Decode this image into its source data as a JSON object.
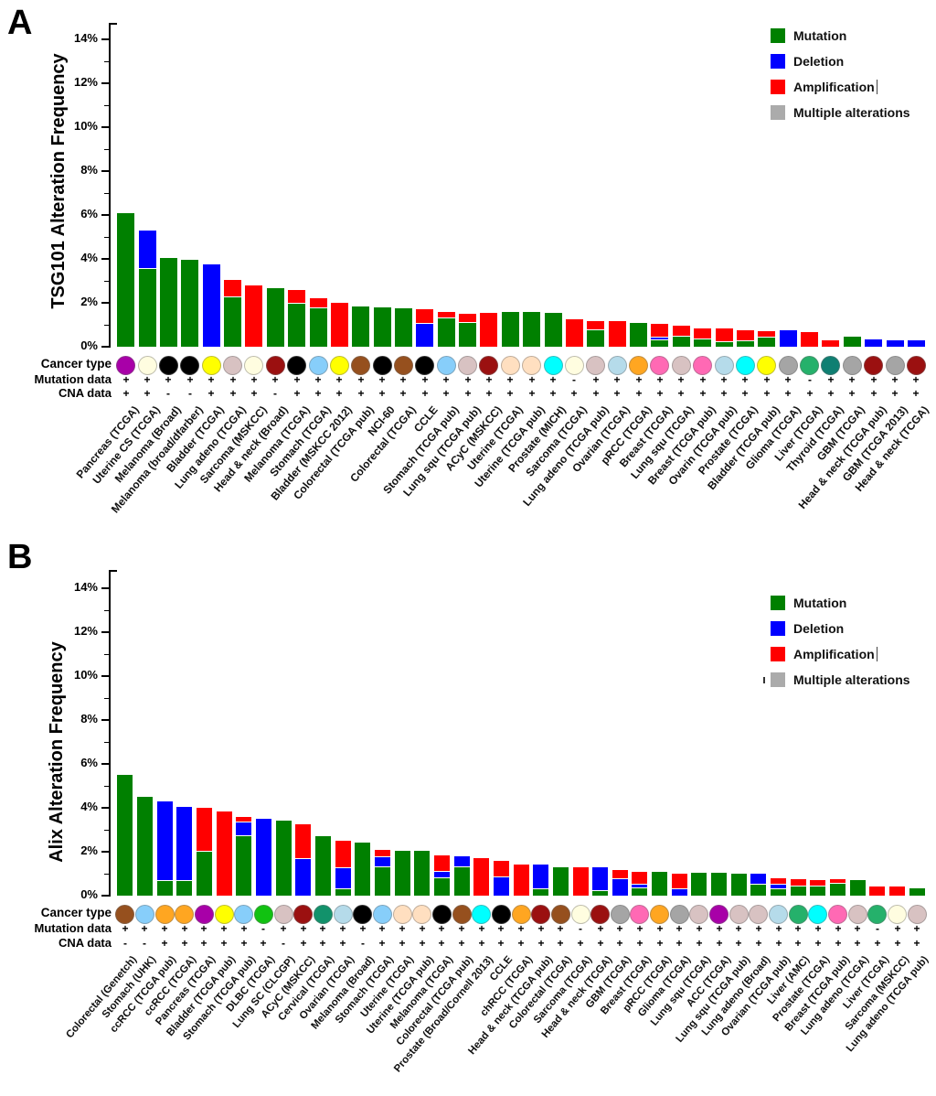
{
  "colors": {
    "mutation": "#008000",
    "deletion": "#0000FF",
    "amplification": "#FF0000",
    "multiple": "#ABABAB"
  },
  "chart_data": [
    {
      "type": "bar",
      "stacked": true,
      "panel_letter": "A",
      "ylabel": "TSG101 Alteration Frequency",
      "ylim": [
        0,
        15
      ],
      "y_ticks": [
        "0%",
        "2%",
        "4%",
        "6%",
        "8%",
        "10%",
        "12%",
        "14%"
      ],
      "grid": false,
      "legend_position": "top-right",
      "legend": [
        {
          "label": "Mutation",
          "color": "#008000"
        },
        {
          "label": "Deletion",
          "color": "#0000FF"
        },
        {
          "label": "Amplification",
          "color": "#FF0000",
          "caret": true
        },
        {
          "label": "Multiple alterations",
          "color": "#ABABAB"
        }
      ],
      "row_labels": [
        "Cancer type",
        "Mutation data",
        "CNA data"
      ],
      "series_keys": [
        "mutation",
        "deletion",
        "amplification"
      ],
      "bars": [
        {
          "label": "Pancreas (TCGA)",
          "dot": "#A800A8",
          "mut": "+",
          "cna": "+",
          "m": 6.1,
          "d": 0,
          "a": 0
        },
        {
          "label": "Uterine CS (TCGA)",
          "dot": "#FFFDE0",
          "mut": "+",
          "cna": "+",
          "m": 3.55,
          "d": 1.75,
          "a": 0
        },
        {
          "label": "Melanoma (Broad)",
          "dot": "#000000",
          "mut": "+",
          "cna": "-",
          "m": 4.05,
          "d": 0,
          "a": 0
        },
        {
          "label": "Melanoma (broad/dfarber)",
          "dot": "#000000",
          "mut": "+",
          "cna": "-",
          "m": 3.95,
          "d": 0,
          "a": 0
        },
        {
          "label": "Bladder (TCGA)",
          "dot": "#FFFF00",
          "mut": "+",
          "cna": "+",
          "m": 0,
          "d": 3.75,
          "a": 0
        },
        {
          "label": "Lung adeno (TCGA)",
          "dot": "#D8C2C2",
          "mut": "+",
          "cna": "+",
          "m": 2.25,
          "d": 0,
          "a": 0.8
        },
        {
          "label": "Sarcoma (MSKCC)",
          "dot": "#FFFDE0",
          "mut": "+",
          "cna": "+",
          "m": 0,
          "d": 0,
          "a": 2.8
        },
        {
          "label": "Head & neck (Broad)",
          "dot": "#9B1010",
          "mut": "+",
          "cna": "-",
          "m": 2.65,
          "d": 0,
          "a": 0
        },
        {
          "label": "Melanoma (TCGA)",
          "dot": "#000000",
          "mut": "+",
          "cna": "+",
          "m": 1.95,
          "d": 0,
          "a": 0.65
        },
        {
          "label": "Stomach (TCGA)",
          "dot": "#87CEFA",
          "mut": "+",
          "cna": "+",
          "m": 1.75,
          "d": 0,
          "a": 0.45
        },
        {
          "label": "Bladder (MSKCC 2012)",
          "dot": "#FFFF00",
          "mut": "+",
          "cna": "+",
          "m": 0,
          "d": 0,
          "a": 2.0
        },
        {
          "label": "Colorectal (TCGA pub)",
          "dot": "#96501E",
          "mut": "+",
          "cna": "+",
          "m": 1.85,
          "d": 0,
          "a": 0
        },
        {
          "label": "NCI-60",
          "dot": "#000000",
          "mut": "+",
          "cna": "+",
          "m": 1.8,
          "d": 0,
          "a": 0
        },
        {
          "label": "Colorectal (TCGA)",
          "dot": "#96501E",
          "mut": "+",
          "cna": "+",
          "m": 1.75,
          "d": 0,
          "a": 0
        },
        {
          "label": "CCLE",
          "dot": "#000000",
          "mut": "+",
          "cna": "+",
          "m": 0,
          "d": 1.05,
          "a": 0.65
        },
        {
          "label": "Stomach (TCGA pub)",
          "dot": "#87CEFA",
          "mut": "+",
          "cna": "+",
          "m": 1.3,
          "d": 0,
          "a": 0.3
        },
        {
          "label": "Lung squ (TCGA pub)",
          "dot": "#D8C2C2",
          "mut": "+",
          "cna": "+",
          "m": 1.1,
          "d": 0,
          "a": 0.4
        },
        {
          "label": "ACyC (MSKCC)",
          "dot": "#9B1010",
          "mut": "+",
          "cna": "+",
          "m": 0,
          "d": 0,
          "a": 1.55
        },
        {
          "label": "Uterine (TCGA)",
          "dot": "#FFDFC0",
          "mut": "+",
          "cna": "+",
          "m": 1.6,
          "d": 0,
          "a": 0
        },
        {
          "label": "Uterine (TCGA pub)",
          "dot": "#FFDFC0",
          "mut": "+",
          "cna": "+",
          "m": 1.6,
          "d": 0,
          "a": 0
        },
        {
          "label": "Prostate (MICH)",
          "dot": "#00FFFF",
          "mut": "+",
          "cna": "+",
          "m": 1.55,
          "d": 0,
          "a": 0
        },
        {
          "label": "Sarcoma (TCGA)",
          "dot": "#FFFDE0",
          "mut": "-",
          "cna": "+",
          "m": 0,
          "d": 0,
          "a": 1.25
        },
        {
          "label": "Lung adeno (TCGA pub)",
          "dot": "#D8C2C2",
          "mut": "+",
          "cna": "+",
          "m": 0.75,
          "d": 0,
          "a": 0.4
        },
        {
          "label": "Ovarian (TCGA)",
          "dot": "#B5DBEA",
          "mut": "+",
          "cna": "+",
          "m": 0,
          "d": 0,
          "a": 1.15
        },
        {
          "label": "pRCC (TCGA)",
          "dot": "#FFA621",
          "mut": "+",
          "cna": "+",
          "m": 1.1,
          "d": 0,
          "a": 0
        },
        {
          "label": "Breast (TCGA)",
          "dot": "#FF69B4",
          "mut": "+",
          "cna": "+",
          "m": 0.3,
          "d": 0.1,
          "a": 0.65
        },
        {
          "label": "Lung squ (TCGA)",
          "dot": "#D8C2C2",
          "mut": "+",
          "cna": "+",
          "m": 0.45,
          "d": 0,
          "a": 0.5
        },
        {
          "label": "Breast (TCGA pub)",
          "dot": "#FF69B4",
          "mut": "+",
          "cna": "+",
          "m": 0.35,
          "d": 0,
          "a": 0.5
        },
        {
          "label": "Ovarin (TCGA pub)",
          "dot": "#B5DBEA",
          "mut": "+",
          "cna": "+",
          "m": 0.2,
          "d": 0,
          "a": 0.65
        },
        {
          "label": "Prostate (TCGA)",
          "dot": "#00FFFF",
          "mut": "+",
          "cna": "+",
          "m": 0.25,
          "d": 0,
          "a": 0.5
        },
        {
          "label": "Bladder (TCGA pub)",
          "dot": "#FFFF00",
          "mut": "+",
          "cna": "+",
          "m": 0.4,
          "d": 0,
          "a": 0.3
        },
        {
          "label": "Glioma (TCGA)",
          "dot": "#A5A5A5",
          "mut": "+",
          "cna": "+",
          "m": 0,
          "d": 0.75,
          "a": 0
        },
        {
          "label": "Liver (TCGA)",
          "dot": "#25B16B",
          "mut": "-",
          "cna": "+",
          "m": 0,
          "d": 0,
          "a": 0.65
        },
        {
          "label": "Thyroid (TCGA)",
          "dot": "#0F7F72",
          "mut": "+",
          "cna": "+",
          "m": 0,
          "d": 0,
          "a": 0.3
        },
        {
          "label": "GBM (TCGA)",
          "dot": "#A5A5A5",
          "mut": "+",
          "cna": "+",
          "m": 0.45,
          "d": 0,
          "a": 0
        },
        {
          "label": "Head & neck (TCGA pub)",
          "dot": "#9B1010",
          "mut": "+",
          "cna": "+",
          "m": 0,
          "d": 0.35,
          "a": 0
        },
        {
          "label": "GBM (TCGA 2013)",
          "dot": "#A5A5A5",
          "mut": "+",
          "cna": "+",
          "m": 0,
          "d": 0.3,
          "a": 0
        },
        {
          "label": "Head & neck (TCGA)",
          "dot": "#9B1010",
          "mut": "+",
          "cna": "+",
          "m": 0,
          "d": 0.3,
          "a": 0
        }
      ]
    },
    {
      "type": "bar",
      "stacked": true,
      "panel_letter": "B",
      "ylabel": "Alix Alteration Frequency",
      "ylim": [
        0,
        15
      ],
      "y_ticks": [
        "0%",
        "2%",
        "4%",
        "6%",
        "8%",
        "10%",
        "12%",
        "14%"
      ],
      "grid": false,
      "legend_position": "top-right",
      "legend": [
        {
          "label": "Mutation",
          "color": "#008000"
        },
        {
          "label": "Deletion",
          "color": "#0000FF"
        },
        {
          "label": "Amplification",
          "color": "#FF0000",
          "caret": true
        },
        {
          "label": "Multiple alterations",
          "color": "#ABABAB",
          "pre_tick": true
        }
      ],
      "row_labels": [
        "Cancer type",
        "Mutation data",
        "CNA data"
      ],
      "series_keys": [
        "mutation",
        "deletion",
        "amplification"
      ],
      "bars": [
        {
          "label": "Colorectal (Genetch)",
          "dot": "#96501E",
          "mut": "+",
          "cna": "-",
          "m": 5.5,
          "d": 0,
          "a": 0
        },
        {
          "label": "Stomach (UHK)",
          "dot": "#87CEFA",
          "mut": "+",
          "cna": "-",
          "m": 4.5,
          "d": 0,
          "a": 0
        },
        {
          "label": "ccRCC (TCGA pub)",
          "dot": "#FFA621",
          "mut": "+",
          "cna": "+",
          "m": 0.65,
          "d": 3.65,
          "a": 0
        },
        {
          "label": "ccRCC (TCGA)",
          "dot": "#FFA621",
          "mut": "+",
          "cna": "+",
          "m": 0.65,
          "d": 3.4,
          "a": 0
        },
        {
          "label": "Pancreas (TCGA)",
          "dot": "#A800A8",
          "mut": "+",
          "cna": "+",
          "m": 2.0,
          "d": 0,
          "a": 2.0
        },
        {
          "label": "Bladder (TCGA pub)",
          "dot": "#FFFF00",
          "mut": "+",
          "cna": "+",
          "m": 0,
          "d": 0,
          "a": 3.85
        },
        {
          "label": "Stomach (TCGA pub)",
          "dot": "#87CEFA",
          "mut": "+",
          "cna": "+",
          "m": 2.7,
          "d": 0.65,
          "a": 0.25
        },
        {
          "label": "DLBC (TCGA)",
          "dot": "#11C211",
          "mut": "-",
          "cna": "+",
          "m": 0,
          "d": 3.5,
          "a": 0
        },
        {
          "label": "Lung SC (CLCGP)",
          "dot": "#D8C2C2",
          "mut": "+",
          "cna": "-",
          "m": 3.4,
          "d": 0,
          "a": 0
        },
        {
          "label": "ACyC (MSKCC)",
          "dot": "#9B1010",
          "mut": "+",
          "cna": "+",
          "m": 0,
          "d": 1.65,
          "a": 1.6
        },
        {
          "label": "Cervical (TCGA)",
          "dot": "#12926B",
          "mut": "+",
          "cna": "+",
          "m": 2.7,
          "d": 0,
          "a": 0
        },
        {
          "label": "Ovarian (TCGA)",
          "dot": "#B5DBEA",
          "mut": "+",
          "cna": "+",
          "m": 0.3,
          "d": 0.95,
          "a": 1.25
        },
        {
          "label": "Melanoma (Broad)",
          "dot": "#000000",
          "mut": "+",
          "cna": "-",
          "m": 2.4,
          "d": 0,
          "a": 0
        },
        {
          "label": "Stomach (TCGA)",
          "dot": "#87CEFA",
          "mut": "+",
          "cna": "+",
          "m": 1.3,
          "d": 0.45,
          "a": 0.35
        },
        {
          "label": "Uterine (TCGA)",
          "dot": "#FFDFC0",
          "mut": "+",
          "cna": "+",
          "m": 2.05,
          "d": 0,
          "a": 0
        },
        {
          "label": "Uterine (TCGA pub)",
          "dot": "#FFDFC0",
          "mut": "+",
          "cna": "+",
          "m": 2.05,
          "d": 0,
          "a": 0
        },
        {
          "label": "Melanoma (TCGA)",
          "dot": "#000000",
          "mut": "+",
          "cna": "+",
          "m": 0.8,
          "d": 0.3,
          "a": 0.75
        },
        {
          "label": "Colorectal (TCGA pub)",
          "dot": "#96501E",
          "mut": "+",
          "cna": "+",
          "m": 1.3,
          "d": 0.5,
          "a": 0
        },
        {
          "label": "Prostate (Broad/Cornell 2013)",
          "dot": "#00FFFF",
          "mut": "+",
          "cna": "+",
          "m": 0,
          "d": 0,
          "a": 1.7
        },
        {
          "label": "CCLE",
          "dot": "#000000",
          "mut": "+",
          "cna": "+",
          "m": 0,
          "d": 0.85,
          "a": 0.75
        },
        {
          "label": "chRCC (TCGA)",
          "dot": "#FFA621",
          "mut": "+",
          "cna": "+",
          "m": 0,
          "d": 0,
          "a": 1.4
        },
        {
          "label": "Head & neck (TCGA pub)",
          "dot": "#9B1010",
          "mut": "+",
          "cna": "+",
          "m": 0.3,
          "d": 1.1,
          "a": 0
        },
        {
          "label": "Colorectal (TCGA)",
          "dot": "#96501E",
          "mut": "+",
          "cna": "+",
          "m": 1.3,
          "d": 0,
          "a": 0
        },
        {
          "label": "Sarcoma (TCGA)",
          "dot": "#FFFDE0",
          "mut": "-",
          "cna": "+",
          "m": 0,
          "d": 0,
          "a": 1.3
        },
        {
          "label": "Head & neck (TCGA)",
          "dot": "#9B1010",
          "mut": "+",
          "cna": "+",
          "m": 0.2,
          "d": 1.1,
          "a": 0
        },
        {
          "label": "GBM (TCGA)",
          "dot": "#A5A5A5",
          "mut": "+",
          "cna": "+",
          "m": 0,
          "d": 0.75,
          "a": 0.4
        },
        {
          "label": "Breast (TCGA)",
          "dot": "#FF69B4",
          "mut": "+",
          "cna": "+",
          "m": 0.35,
          "d": 0.15,
          "a": 0.6
        },
        {
          "label": "pRCC (TCGA)",
          "dot": "#FFA621",
          "mut": "+",
          "cna": "+",
          "m": 1.1,
          "d": 0,
          "a": 0
        },
        {
          "label": "Glioma (TCGA)",
          "dot": "#A5A5A5",
          "mut": "+",
          "cna": "+",
          "m": 0,
          "d": 0.3,
          "a": 0.7
        },
        {
          "label": "Lung squ (TCGA)",
          "dot": "#D8C2C2",
          "mut": "+",
          "cna": "+",
          "m": 1.05,
          "d": 0,
          "a": 0
        },
        {
          "label": "ACC (TCGA)",
          "dot": "#A800A8",
          "mut": "+",
          "cna": "+",
          "m": 1.05,
          "d": 0,
          "a": 0
        },
        {
          "label": "Lung squ (TCGA pub)",
          "dot": "#D8C2C2",
          "mut": "+",
          "cna": "+",
          "m": 1.0,
          "d": 0,
          "a": 0
        },
        {
          "label": "Lung adeno (Broad)",
          "dot": "#D8C2C2",
          "mut": "+",
          "cna": "+",
          "m": 0.5,
          "d": 0.5,
          "a": 0
        },
        {
          "label": "Ovarian (TCGA pub)",
          "dot": "#B5DBEA",
          "mut": "+",
          "cna": "+",
          "m": 0.3,
          "d": 0.2,
          "a": 0.3
        },
        {
          "label": "Liver (AMC)",
          "dot": "#25B16B",
          "mut": "+",
          "cna": "+",
          "m": 0.4,
          "d": 0,
          "a": 0.35
        },
        {
          "label": "Prostate (TCGA)",
          "dot": "#00FFFF",
          "mut": "+",
          "cna": "+",
          "m": 0.4,
          "d": 0,
          "a": 0.3
        },
        {
          "label": "Breast (TCGA pub)",
          "dot": "#FF69B4",
          "mut": "+",
          "cna": "+",
          "m": 0.55,
          "d": 0,
          "a": 0.2
        },
        {
          "label": "Lung adeno (TCGA)",
          "dot": "#D8C2C2",
          "mut": "+",
          "cna": "+",
          "m": 0.7,
          "d": 0,
          "a": 0
        },
        {
          "label": "Liver (TCGA)",
          "dot": "#25B16B",
          "mut": "-",
          "cna": "+",
          "m": 0,
          "d": 0,
          "a": 0.4
        },
        {
          "label": "Sarcoma (MSKCC)",
          "dot": "#FFFDE0",
          "mut": "+",
          "cna": "+",
          "m": 0,
          "d": 0,
          "a": 0.4
        },
        {
          "label": "Lung adeno (TCGA pub)",
          "dot": "#D8C2C2",
          "mut": "+",
          "cna": "+",
          "m": 0.35,
          "d": 0,
          "a": 0
        }
      ]
    }
  ]
}
